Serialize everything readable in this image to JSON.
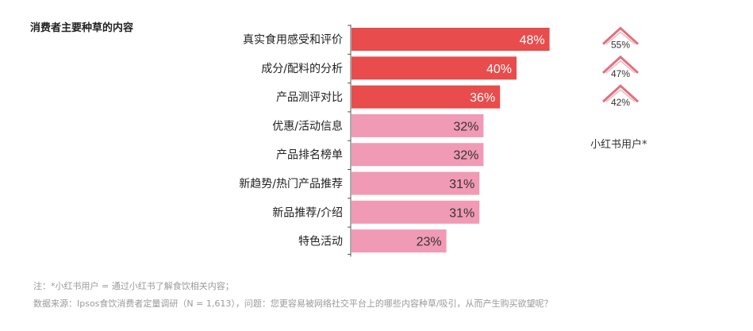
{
  "title": "消费者主要种草的内容",
  "side_series_label": "小红书用户*",
  "footnotes": [
    "注：*小红书用户 = 通过小红书了解食饮相关内容；",
    "数据来源：Ipsos食饮消费者定量调研（N = 1,613），问题：您更容易被网络社交平台上的哪些内容种草/吸引，从而产生购买欲望呢？"
  ],
  "colors": {
    "highlight": "#e84c4c",
    "normal": "#f19ab5",
    "marker_stroke": "#e0707f",
    "axis": "#555555"
  },
  "chart_data": {
    "type": "bar",
    "orientation": "horizontal",
    "categories": [
      "真实食用感受和评价",
      "成分/配料的分析",
      "产品测评对比",
      "优惠/活动信息",
      "产品排名榜单",
      "新趋势/热门产品推荐",
      "新品推荐/介绍",
      "特色活动"
    ],
    "values": [
      48,
      40,
      36,
      32,
      32,
      31,
      31,
      23
    ],
    "value_labels": [
      "48%",
      "40%",
      "36%",
      "32%",
      "32%",
      "31%",
      "31%",
      "23%"
    ],
    "highlighted_indices": [
      0,
      1,
      2
    ],
    "unit": "%",
    "xlim": [
      0,
      100
    ],
    "side_markers": {
      "label": "小红书用户*",
      "values": [
        55,
        47,
        42
      ],
      "value_labels": [
        "55%",
        "47%",
        "42%"
      ],
      "category_indices": [
        0,
        1,
        2
      ]
    }
  }
}
